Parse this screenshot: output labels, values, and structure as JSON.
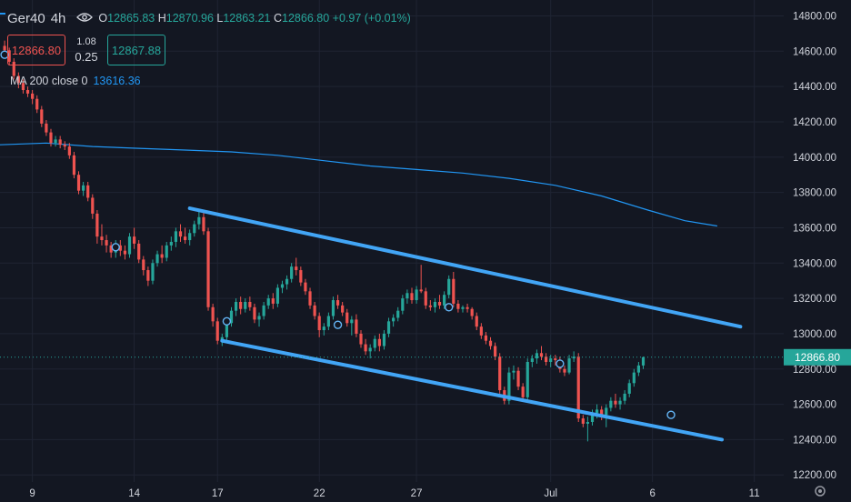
{
  "header": {
    "symbol": "Ger40",
    "interval": "4h",
    "ohlc": [
      {
        "label": "O",
        "value": "12865.83"
      },
      {
        "label": "H",
        "value": "12870.96"
      },
      {
        "label": "L",
        "value": "12863.21"
      },
      {
        "label": "C",
        "value": "12866.80"
      }
    ],
    "change": "+0.97 (+0.01%)"
  },
  "trade_box": {
    "sell": "12866.80",
    "spread_top": "1.08",
    "spread_bottom": "0.25",
    "buy": "12867.88"
  },
  "indicator": {
    "label": "MA 200 close 0",
    "value": "13616.36"
  },
  "colors": {
    "background": "#131722",
    "up": "#26a69a",
    "down": "#ef5350",
    "ma": "#2196f3",
    "channel": "#42a5f5",
    "grid": "#1f2433",
    "text": "#d1d4dc"
  },
  "chart_data": {
    "type": "candlestick",
    "y_axis_ticks": [
      "14800.00",
      "14600.00",
      "14400.00",
      "14200.00",
      "14000.00",
      "13800.00",
      "13600.00",
      "13400.00",
      "13200.00",
      "13000.00",
      "12800.00",
      "12600.00",
      "12400.00",
      "12200.00"
    ],
    "ylim": [
      12160,
      14890
    ],
    "x_axis_ticks": [
      {
        "label": "9",
        "t": 7
      },
      {
        "label": "14",
        "t": 29
      },
      {
        "label": "17",
        "t": 47
      },
      {
        "label": "22",
        "t": 69
      },
      {
        "label": "27",
        "t": 90
      },
      {
        "label": "Jul",
        "t": 119
      },
      {
        "label": "6",
        "t": 141
      },
      {
        "label": "11",
        "t": 163
      }
    ],
    "xlim": [
      0,
      167
    ],
    "last_price": "12866.80",
    "last_price_value": 12866.8,
    "candles": [
      [
        1,
        14630,
        14660,
        14590,
        14605
      ],
      [
        2,
        14605,
        14620,
        14520,
        14540
      ],
      [
        3,
        14540,
        14560,
        14440,
        14460
      ],
      [
        4,
        14460,
        14480,
        14390,
        14420
      ],
      [
        5,
        14420,
        14440,
        14360,
        14380
      ],
      [
        6,
        14380,
        14400,
        14340,
        14360
      ],
      [
        7,
        14360,
        14380,
        14300,
        14330
      ],
      [
        8,
        14330,
        14350,
        14250,
        14270
      ],
      [
        9,
        14270,
        14290,
        14170,
        14190
      ],
      [
        10,
        14190,
        14210,
        14120,
        14140
      ],
      [
        11,
        14140,
        14160,
        14060,
        14080
      ],
      [
        12,
        14080,
        14120,
        14060,
        14100
      ],
      [
        13,
        14100,
        14120,
        14050,
        14070
      ],
      [
        14,
        14070,
        14090,
        14040,
        14060
      ],
      [
        15,
        14060,
        14080,
        13990,
        14010
      ],
      [
        16,
        14010,
        14030,
        13880,
        13900
      ],
      [
        17,
        13900,
        13920,
        13790,
        13810
      ],
      [
        18,
        13810,
        13860,
        13780,
        13840
      ],
      [
        19,
        13840,
        13860,
        13750,
        13770
      ],
      [
        20,
        13770,
        13790,
        13650,
        13680
      ],
      [
        21,
        13680,
        13700,
        13510,
        13550
      ],
      [
        22,
        13550,
        13620,
        13500,
        13530
      ],
      [
        23,
        13530,
        13560,
        13460,
        13500
      ],
      [
        24,
        13500,
        13520,
        13430,
        13460
      ],
      [
        25,
        13460,
        13530,
        13430,
        13500
      ],
      [
        26,
        13500,
        13530,
        13440,
        13470
      ],
      [
        27,
        13470,
        13500,
        13420,
        13450
      ],
      [
        28,
        13450,
        13570,
        13430,
        13550
      ],
      [
        29,
        13550,
        13600,
        13480,
        13510
      ],
      [
        30,
        13510,
        13530,
        13400,
        13420
      ],
      [
        31,
        13420,
        13440,
        13330,
        13360
      ],
      [
        32,
        13360,
        13380,
        13270,
        13300
      ],
      [
        33,
        13300,
        13420,
        13280,
        13400
      ],
      [
        34,
        13400,
        13470,
        13380,
        13450
      ],
      [
        35,
        13450,
        13500,
        13400,
        13430
      ],
      [
        36,
        13430,
        13520,
        13410,
        13500
      ],
      [
        37,
        13500,
        13550,
        13470,
        13520
      ],
      [
        38,
        13520,
        13600,
        13490,
        13580
      ],
      [
        39,
        13580,
        13620,
        13520,
        13550
      ],
      [
        40,
        13550,
        13600,
        13510,
        13530
      ],
      [
        41,
        13530,
        13590,
        13500,
        13570
      ],
      [
        42,
        13570,
        13640,
        13550,
        13620
      ],
      [
        43,
        13620,
        13700,
        13590,
        13660
      ],
      [
        44,
        13660,
        13690,
        13560,
        13580
      ],
      [
        45,
        13580,
        13600,
        13130,
        13150
      ],
      [
        46,
        13150,
        13170,
        13040,
        13070
      ],
      [
        47,
        13070,
        13090,
        12940,
        12960
      ],
      [
        48,
        12960,
        13000,
        12930,
        12980
      ],
      [
        49,
        12980,
        13080,
        12960,
        13060
      ],
      [
        50,
        13060,
        13150,
        13040,
        13130
      ],
      [
        51,
        13130,
        13200,
        13100,
        13180
      ],
      [
        52,
        13180,
        13210,
        13110,
        13140
      ],
      [
        53,
        13140,
        13200,
        13120,
        13180
      ],
      [
        54,
        13180,
        13210,
        13130,
        13150
      ],
      [
        55,
        13150,
        13170,
        13060,
        13080
      ],
      [
        56,
        13080,
        13120,
        13040,
        13100
      ],
      [
        57,
        13100,
        13180,
        13080,
        13160
      ],
      [
        58,
        13160,
        13220,
        13140,
        13200
      ],
      [
        59,
        13200,
        13230,
        13140,
        13170
      ],
      [
        60,
        13170,
        13280,
        13150,
        13260
      ],
      [
        61,
        13260,
        13300,
        13230,
        13280
      ],
      [
        62,
        13280,
        13330,
        13250,
        13310
      ],
      [
        63,
        13310,
        13400,
        13290,
        13380
      ],
      [
        64,
        13380,
        13430,
        13330,
        13360
      ],
      [
        65,
        13360,
        13380,
        13270,
        13290
      ],
      [
        66,
        13290,
        13310,
        13220,
        13240
      ],
      [
        67,
        13240,
        13260,
        13140,
        13160
      ],
      [
        68,
        13160,
        13180,
        13080,
        13100
      ],
      [
        69,
        13100,
        13120,
        12980,
        13020
      ],
      [
        70,
        13020,
        13060,
        12990,
        13040
      ],
      [
        71,
        13040,
        13120,
        13020,
        13100
      ],
      [
        72,
        13100,
        13210,
        13080,
        13190
      ],
      [
        73,
        13190,
        13220,
        13140,
        13160
      ],
      [
        74,
        13160,
        13180,
        13100,
        13120
      ],
      [
        75,
        13120,
        13140,
        13040,
        13060
      ],
      [
        76,
        13060,
        13100,
        12990,
        13080
      ],
      [
        77,
        13080,
        13110,
        12980,
        13000
      ],
      [
        78,
        13000,
        13020,
        12920,
        12940
      ],
      [
        79,
        12940,
        12970,
        12880,
        12900
      ],
      [
        80,
        12900,
        12940,
        12860,
        12920
      ],
      [
        81,
        12920,
        12990,
        12900,
        12970
      ],
      [
        82,
        12970,
        13000,
        12900,
        12930
      ],
      [
        83,
        12930,
        13020,
        12910,
        13000
      ],
      [
        84,
        13000,
        13090,
        12980,
        13070
      ],
      [
        85,
        13070,
        13110,
        13040,
        13090
      ],
      [
        86,
        13090,
        13150,
        13070,
        13130
      ],
      [
        87,
        13130,
        13220,
        13110,
        13200
      ],
      [
        88,
        13200,
        13250,
        13170,
        13230
      ],
      [
        89,
        13230,
        13260,
        13170,
        13190
      ],
      [
        90,
        13190,
        13270,
        13170,
        13250
      ],
      [
        91,
        13250,
        13390,
        13230,
        13240
      ],
      [
        92,
        13240,
        13260,
        13140,
        13160
      ],
      [
        93,
        13160,
        13190,
        13130,
        13150
      ],
      [
        94,
        13150,
        13200,
        13120,
        13180
      ],
      [
        95,
        13180,
        13220,
        13140,
        13160
      ],
      [
        96,
        13160,
        13240,
        13140,
        13220
      ],
      [
        97,
        13220,
        13330,
        13200,
        13310
      ],
      [
        98,
        13310,
        13350,
        13150,
        13170
      ],
      [
        99,
        13170,
        13190,
        13120,
        13140
      ],
      [
        100,
        13140,
        13160,
        13120,
        13150
      ],
      [
        101,
        13150,
        13170,
        13120,
        13140
      ],
      [
        102,
        13140,
        13150,
        13080,
        13100
      ],
      [
        103,
        13100,
        13120,
        13020,
        13040
      ],
      [
        104,
        13040,
        13060,
        12970,
        12990
      ],
      [
        105,
        12990,
        13010,
        12940,
        12960
      ],
      [
        106,
        12960,
        12980,
        12910,
        12930
      ],
      [
        107,
        12930,
        12950,
        12850,
        12870
      ],
      [
        108,
        12870,
        12890,
        12660,
        12680
      ],
      [
        109,
        12680,
        12700,
        12600,
        12620
      ],
      [
        110,
        12620,
        12810,
        12600,
        12780
      ],
      [
        111,
        12780,
        12820,
        12740,
        12790
      ],
      [
        112,
        12790,
        12810,
        12680,
        12700
      ],
      [
        113,
        12700,
        12720,
        12620,
        12640
      ],
      [
        114,
        12640,
        12860,
        12620,
        12840
      ],
      [
        115,
        12840,
        12880,
        12810,
        12860
      ],
      [
        116,
        12860,
        12910,
        12830,
        12890
      ],
      [
        117,
        12890,
        12930,
        12850,
        12870
      ],
      [
        118,
        12870,
        12890,
        12820,
        12840
      ],
      [
        119,
        12840,
        12880,
        12810,
        12860
      ],
      [
        120,
        12860,
        12880,
        12820,
        12850
      ],
      [
        121,
        12850,
        12870,
        12780,
        12800
      ],
      [
        122,
        12800,
        12820,
        12760,
        12780
      ],
      [
        123,
        12780,
        12880,
        12770,
        12860
      ],
      [
        124,
        12860,
        12900,
        12840,
        12870
      ],
      [
        125,
        12870,
        12890,
        12500,
        12520
      ],
      [
        126,
        12520,
        12540,
        12470,
        12490
      ],
      [
        127,
        12490,
        12530,
        12390,
        12500
      ],
      [
        128,
        12500,
        12570,
        12480,
        12550
      ],
      [
        129,
        12550,
        12600,
        12520,
        12570
      ],
      [
        130,
        12570,
        12590,
        12510,
        12540
      ],
      [
        131,
        12540,
        12600,
        12470,
        12580
      ],
      [
        132,
        12580,
        12640,
        12560,
        12620
      ],
      [
        133,
        12620,
        12660,
        12580,
        12600
      ],
      [
        134,
        12600,
        12640,
        12570,
        12620
      ],
      [
        135,
        12620,
        12680,
        12600,
        12660
      ],
      [
        136,
        12660,
        12740,
        12640,
        12720
      ],
      [
        137,
        12720,
        12800,
        12700,
        12780
      ],
      [
        138,
        12780,
        12840,
        12760,
        12820
      ],
      [
        139,
        12820,
        12870,
        12800,
        12866.8
      ]
    ],
    "ma200": [
      [
        0,
        14070
      ],
      [
        10,
        14080
      ],
      [
        20,
        14060
      ],
      [
        30,
        14050
      ],
      [
        40,
        14040
      ],
      [
        50,
        14030
      ],
      [
        60,
        14010
      ],
      [
        70,
        13980
      ],
      [
        80,
        13950
      ],
      [
        90,
        13930
      ],
      [
        100,
        13910
      ],
      [
        110,
        13880
      ],
      [
        120,
        13840
      ],
      [
        130,
        13780
      ],
      [
        140,
        13700
      ],
      [
        148,
        13640
      ],
      [
        155,
        13610
      ]
    ],
    "channel_upper": [
      [
        41,
        13710
      ],
      [
        160,
        13040
      ]
    ],
    "channel_lower": [
      [
        48,
        12960
      ],
      [
        156,
        12400
      ]
    ],
    "circle_markers": [
      {
        "t": 1,
        "v": 14580
      },
      {
        "t": 25,
        "v": 13490
      },
      {
        "t": 49,
        "v": 13070
      },
      {
        "t": 73,
        "v": 13050
      },
      {
        "t": 97,
        "v": 13150
      },
      {
        "t": 121,
        "v": 12830
      },
      {
        "t": 145,
        "v": 12540
      }
    ]
  }
}
